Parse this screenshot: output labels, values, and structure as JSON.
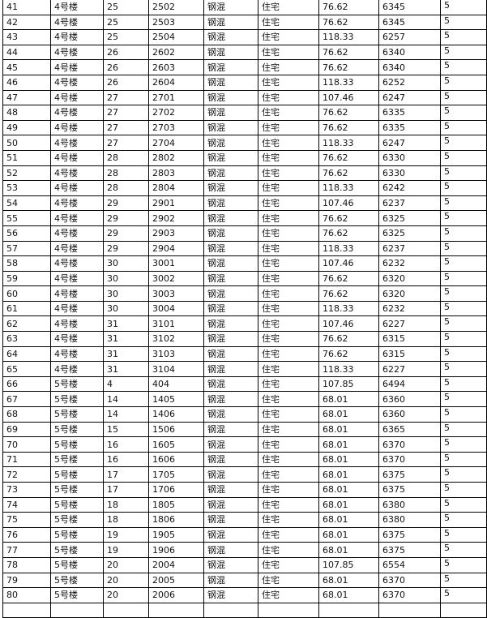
{
  "table": {
    "rows": [
      [
        "41",
        "4号楼",
        "25",
        "2502",
        "钢混",
        "住宅",
        "76.62",
        "6345",
        "5"
      ],
      [
        "42",
        "4号楼",
        "25",
        "2503",
        "钢混",
        "住宅",
        "76.62",
        "6345",
        "5"
      ],
      [
        "43",
        "4号楼",
        "25",
        "2504",
        "钢混",
        "住宅",
        "118.33",
        "6257",
        "5"
      ],
      [
        "44",
        "4号楼",
        "26",
        "2602",
        "钢混",
        "住宅",
        "76.62",
        "6340",
        "5"
      ],
      [
        "45",
        "4号楼",
        "26",
        "2603",
        "钢混",
        "住宅",
        "76.62",
        "6340",
        "5"
      ],
      [
        "46",
        "4号楼",
        "26",
        "2604",
        "钢混",
        "住宅",
        "118.33",
        "6252",
        "5"
      ],
      [
        "47",
        "4号楼",
        "27",
        "2701",
        "钢混",
        "住宅",
        "107.46",
        "6247",
        "5"
      ],
      [
        "48",
        "4号楼",
        "27",
        "2702",
        "钢混",
        "住宅",
        "76.62",
        "6335",
        "5"
      ],
      [
        "49",
        "4号楼",
        "27",
        "2703",
        "钢混",
        "住宅",
        "76.62",
        "6335",
        "5"
      ],
      [
        "50",
        "4号楼",
        "27",
        "2704",
        "钢混",
        "住宅",
        "118.33",
        "6247",
        "5"
      ],
      [
        "51",
        "4号楼",
        "28",
        "2802",
        "钢混",
        "住宅",
        "76.62",
        "6330",
        "5"
      ],
      [
        "52",
        "4号楼",
        "28",
        "2803",
        "钢混",
        "住宅",
        "76.62",
        "6330",
        "5"
      ],
      [
        "53",
        "4号楼",
        "28",
        "2804",
        "钢混",
        "住宅",
        "118.33",
        "6242",
        "5"
      ],
      [
        "54",
        "4号楼",
        "29",
        "2901",
        "钢混",
        "住宅",
        "107.46",
        "6237",
        "5"
      ],
      [
        "55",
        "4号楼",
        "29",
        "2902",
        "钢混",
        "住宅",
        "76.62",
        "6325",
        "5"
      ],
      [
        "56",
        "4号楼",
        "29",
        "2903",
        "钢混",
        "住宅",
        "76.62",
        "6325",
        "5"
      ],
      [
        "57",
        "4号楼",
        "29",
        "2904",
        "钢混",
        "住宅",
        "118.33",
        "6237",
        "5"
      ],
      [
        "58",
        "4号楼",
        "30",
        "3001",
        "钢混",
        "住宅",
        "107.46",
        "6232",
        "5"
      ],
      [
        "59",
        "4号楼",
        "30",
        "3002",
        "钢混",
        "住宅",
        "76.62",
        "6320",
        "5"
      ],
      [
        "60",
        "4号楼",
        "30",
        "3003",
        "钢混",
        "住宅",
        "76.62",
        "6320",
        "5"
      ],
      [
        "61",
        "4号楼",
        "30",
        "3004",
        "钢混",
        "住宅",
        "118.33",
        "6232",
        "5"
      ],
      [
        "62",
        "4号楼",
        "31",
        "3101",
        "钢混",
        "住宅",
        "107.46",
        "6227",
        "5"
      ],
      [
        "63",
        "4号楼",
        "31",
        "3102",
        "钢混",
        "住宅",
        "76.62",
        "6315",
        "5"
      ],
      [
        "64",
        "4号楼",
        "31",
        "3103",
        "钢混",
        "住宅",
        "76.62",
        "6315",
        "5"
      ],
      [
        "65",
        "4号楼",
        "31",
        "3104",
        "钢混",
        "住宅",
        "118.33",
        "6227",
        "5"
      ],
      [
        "66",
        "5号楼",
        "4",
        "404",
        "钢混",
        "住宅",
        "107.85",
        "6494",
        "5"
      ],
      [
        "67",
        "5号楼",
        "14",
        "1405",
        "钢混",
        "住宅",
        "68.01",
        "6360",
        "5"
      ],
      [
        "68",
        "5号楼",
        "14",
        "1406",
        "钢混",
        "住宅",
        "68.01",
        "6360",
        "5"
      ],
      [
        "69",
        "5号楼",
        "15",
        "1506",
        "钢混",
        "住宅",
        "68.01",
        "6365",
        "5"
      ],
      [
        "70",
        "5号楼",
        "16",
        "1605",
        "钢混",
        "住宅",
        "68.01",
        "6370",
        "5"
      ],
      [
        "71",
        "5号楼",
        "16",
        "1606",
        "钢混",
        "住宅",
        "68.01",
        "6370",
        "5"
      ],
      [
        "72",
        "5号楼",
        "17",
        "1705",
        "钢混",
        "住宅",
        "68.01",
        "6375",
        "5"
      ],
      [
        "73",
        "5号楼",
        "17",
        "1706",
        "钢混",
        "住宅",
        "68.01",
        "6375",
        "5"
      ],
      [
        "74",
        "5号楼",
        "18",
        "1805",
        "钢混",
        "住宅",
        "68.01",
        "6380",
        "5"
      ],
      [
        "75",
        "5号楼",
        "18",
        "1806",
        "钢混",
        "住宅",
        "68.01",
        "6380",
        "5"
      ],
      [
        "76",
        "5号楼",
        "19",
        "1905",
        "钢混",
        "住宅",
        "68.01",
        "6375",
        "5"
      ],
      [
        "77",
        "5号楼",
        "19",
        "1906",
        "钢混",
        "住宅",
        "68.01",
        "6375",
        "5"
      ],
      [
        "78",
        "5号楼",
        "20",
        "2004",
        "钢混",
        "住宅",
        "107.85",
        "6554",
        "5"
      ],
      [
        "79",
        "5号楼",
        "20",
        "2005",
        "钢混",
        "住宅",
        "68.01",
        "6370",
        "5"
      ],
      [
        "80",
        "5号楼",
        "20",
        "2006",
        "钢混",
        "住宅",
        "68.01",
        "6370",
        "5"
      ],
      [
        "",
        "",
        "",
        "",
        "",
        "",
        "",
        "",
        ""
      ]
    ]
  }
}
